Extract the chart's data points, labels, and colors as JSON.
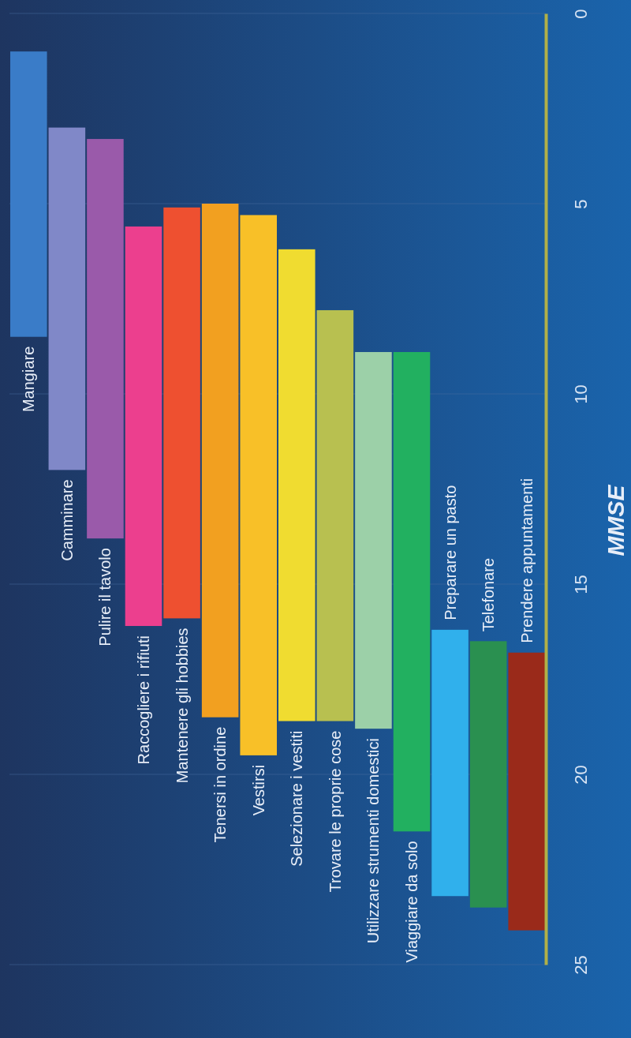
{
  "chart_data": {
    "type": "bar",
    "ylabel": "MMSE",
    "categories": [
      "Mangiare",
      "Camminare",
      "Pulire il tavolo",
      "Raccogliere i rifiuti",
      "Mantenere gli hobbies",
      "Tenersi in ordine",
      "Vestirsi",
      "Selezionare i vestiti",
      "Trovare le proprie cose",
      "Utilizzare strumenti domestici",
      "Viaggiare da solo",
      "Preparare un pasto",
      "Telefonare",
      "Prendere appuntamenti"
    ],
    "base": [
      1,
      3,
      3.3,
      5.6,
      5.1,
      5,
      5.3,
      6.2,
      7.8,
      8.9,
      8.9,
      16.2,
      16.5,
      16.8
    ],
    "values": [
      7.5,
      9,
      10.5,
      10.5,
      10.8,
      13.5,
      14.2,
      12.4,
      10.8,
      9.9,
      12.6,
      7,
      7,
      7.3
    ],
    "colors": [
      "#3a7cc8",
      "#8088c8",
      "#9a5aaa",
      "#ec3f8e",
      "#ee5030",
      "#f2a020",
      "#f8c028",
      "#f0dc30",
      "#b8c050",
      "#9cd0a8",
      "#22b060",
      "#30b0ec",
      "#2a9050",
      "#9a2a1a"
    ],
    "ylim": [
      25,
      0
    ],
    "yticks": [
      0,
      5,
      10,
      15,
      20,
      25
    ],
    "grid": true
  }
}
